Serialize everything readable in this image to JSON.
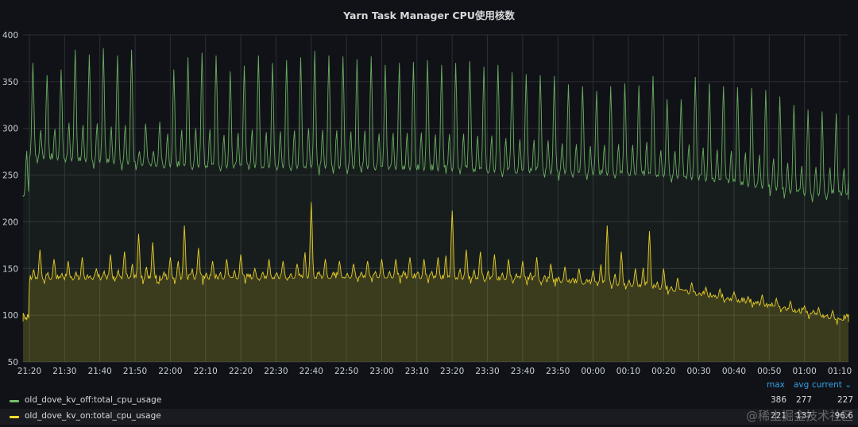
{
  "panel": {
    "title": "Yarn Task Manager CPU使用核数"
  },
  "legend": {
    "headers": {
      "max": "max",
      "avg": "avg",
      "current": "current"
    },
    "rows": [
      {
        "label": "old_dove_kv_off:total_cpu_usage",
        "color": "#73bf69",
        "max": "386",
        "avg": "277",
        "current": "227"
      },
      {
        "label": "old_dove_kv_on:total_cpu_usage",
        "color": "#fade2a",
        "max": "221",
        "avg": "137",
        "current": "96.6"
      }
    ]
  },
  "watermark": "@稀土掘金技术社区",
  "chart_data": {
    "type": "area",
    "x_ticks": [
      "21:20",
      "21:30",
      "21:40",
      "21:50",
      "22:00",
      "22:10",
      "22:20",
      "22:30",
      "22:40",
      "22:50",
      "23:00",
      "23:10",
      "23:20",
      "23:30",
      "23:40",
      "23:50",
      "00:00",
      "00:10",
      "00:20",
      "00:30",
      "00:40",
      "00:50",
      "01:00",
      "01:10"
    ],
    "y_ticks": [
      50,
      100,
      150,
      200,
      250,
      300,
      350,
      400
    ],
    "ylim": [
      50,
      400
    ],
    "grid": true,
    "series": [
      {
        "name": "old_dove_kv_off:total_cpu_usage",
        "color": "#73bf69",
        "spike_times": [
          "21:21",
          "21:25",
          "21:29",
          "21:33",
          "21:37",
          "21:41",
          "21:45",
          "21:49",
          "21:53",
          "21:57",
          "22:01",
          "22:05",
          "22:09",
          "22:13",
          "22:17",
          "22:21",
          "22:25",
          "22:29",
          "22:33",
          "22:37",
          "22:41",
          "22:45",
          "22:49",
          "22:53",
          "22:57",
          "23:01",
          "23:05",
          "23:09",
          "23:13",
          "23:17",
          "23:21",
          "23:25",
          "23:29",
          "23:33",
          "23:37",
          "23:41",
          "23:45",
          "23:49",
          "23:53",
          "23:57",
          "00:01",
          "00:05",
          "00:09",
          "00:13",
          "00:17",
          "00:21",
          "00:25",
          "00:29",
          "00:33",
          "00:37",
          "00:41",
          "00:45",
          "00:49",
          "00:53",
          "00:57",
          "01:01",
          "01:05",
          "01:09",
          "01:13"
        ],
        "spike_values": [
          370,
          357,
          363,
          384,
          379,
          386,
          378,
          384,
          305,
          307,
          363,
          376,
          381,
          378,
          361,
          367,
          378,
          370,
          373,
          376,
          383,
          378,
          377,
          374,
          377,
          368,
          370,
          371,
          373,
          368,
          370,
          372,
          366,
          368,
          360,
          358,
          357,
          356,
          347,
          345,
          340,
          345,
          348,
          346,
          356,
          331,
          331,
          355,
          348,
          345,
          344,
          343,
          341,
          334,
          325,
          320,
          318,
          316,
          314
        ],
        "baseline": [
          [
            "21:20",
            268
          ],
          [
            "22:00",
            258
          ],
          [
            "23:00",
            256
          ],
          [
            "23:40",
            252
          ],
          [
            "00:20",
            248
          ],
          [
            "00:40",
            240
          ],
          [
            "01:00",
            228
          ],
          [
            "01:15",
            227
          ]
        ]
      },
      {
        "name": "old_dove_kv_on:total_cpu_usage",
        "color": "#fade2a",
        "spike_times": [
          "21:23",
          "21:27",
          "21:31",
          "21:35",
          "21:39",
          "21:43",
          "21:47",
          "21:51",
          "21:55",
          "22:00",
          "22:04",
          "22:08",
          "22:12",
          "22:16",
          "22:20",
          "22:24",
          "22:28",
          "22:32",
          "22:36",
          "22:40",
          "22:44",
          "22:48",
          "22:52",
          "22:56",
          "23:00",
          "23:04",
          "23:08",
          "23:12",
          "23:16",
          "23:20",
          "23:24",
          "23:28",
          "23:32",
          "23:36",
          "23:40",
          "23:44",
          "23:48",
          "23:52",
          "23:56",
          "00:00",
          "00:04",
          "00:08",
          "00:12",
          "00:16",
          "00:20",
          "00:24",
          "00:28",
          "00:32",
          "00:36",
          "00:40",
          "00:44",
          "00:48",
          "00:52",
          "00:56",
          "01:00",
          "01:04",
          "01:08",
          "01:12"
        ],
        "spike_values": [
          170,
          160,
          158,
          162,
          150,
          165,
          168,
          187,
          178,
          162,
          196,
          172,
          158,
          160,
          165,
          150,
          160,
          158,
          155,
          221,
          160,
          158,
          155,
          158,
          160,
          160,
          162,
          160,
          162,
          212,
          170,
          168,
          165,
          160,
          158,
          162,
          155,
          152,
          150,
          148,
          196,
          168,
          150,
          190,
          150,
          140,
          135,
          130,
          128,
          125,
          120,
          122,
          118,
          115,
          110,
          108,
          105,
          100
        ],
        "baseline": [
          [
            "21:20",
            138
          ],
          [
            "22:00",
            138
          ],
          [
            "23:00",
            140
          ],
          [
            "23:40",
            137
          ],
          [
            "00:15",
            130
          ],
          [
            "00:35",
            118
          ],
          [
            "00:55",
            105
          ],
          [
            "01:10",
            94
          ],
          [
            "01:15",
            97
          ]
        ]
      }
    ]
  }
}
